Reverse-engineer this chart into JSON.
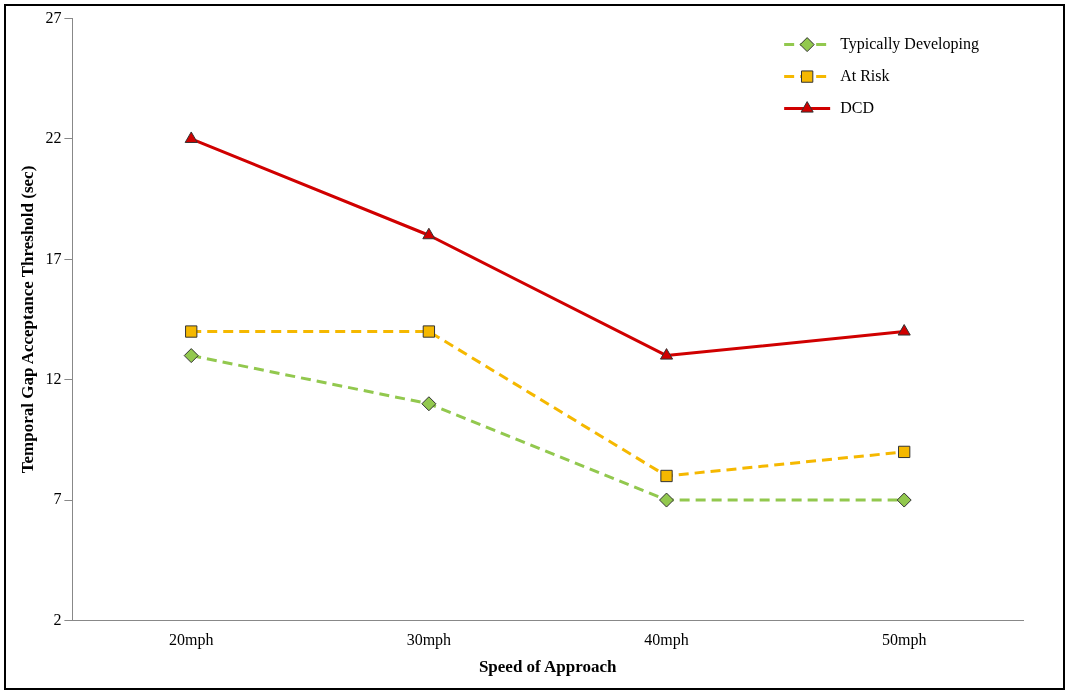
{
  "chart_data": {
    "type": "line",
    "xlabel": "Speed of Approach",
    "ylabel": "Temporal Gap Acceptance Threshold (sec)",
    "categories": [
      "20mph",
      "30mph",
      "40mph",
      "50mph"
    ],
    "series": [
      {
        "name": "Typically Developing",
        "color": "#92c84e",
        "marker": "diamond",
        "line_style": "dashed",
        "values": [
          13,
          11,
          7,
          7
        ]
      },
      {
        "name": "At Risk",
        "color": "#f5b800",
        "marker": "square",
        "line_style": "dashed",
        "values": [
          14,
          14,
          8,
          9
        ]
      },
      {
        "name": "DCD",
        "color": "#d00000",
        "marker": "triangle",
        "line_style": "solid",
        "values": [
          22,
          18,
          13,
          14
        ]
      }
    ],
    "ylim": [
      2,
      27
    ],
    "yticks": [
      2,
      7,
      12,
      17,
      22,
      27
    ],
    "grid": false,
    "legend": "top right"
  }
}
